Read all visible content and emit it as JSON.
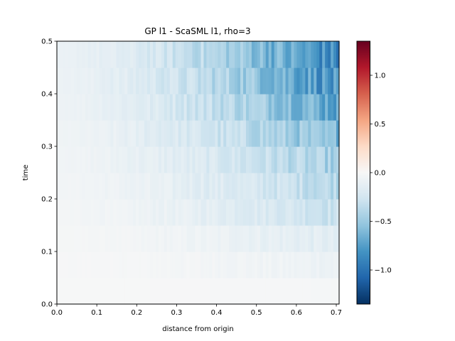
{
  "chart_data": {
    "type": "heatmap",
    "title": "GP l1 - ScaSML l1, rho=3",
    "xlabel": "distance from origin",
    "ylabel": "time",
    "xlim": [
      0,
      0.7071
    ],
    "ylim": [
      0,
      0.5
    ],
    "x_ticks": [
      "0.0",
      "0.1",
      "0.2",
      "0.3",
      "0.4",
      "0.5",
      "0.6",
      "0.7"
    ],
    "y_ticks": [
      "0.0",
      "0.1",
      "0.2",
      "0.3",
      "0.4",
      "0.5"
    ],
    "colormap": "RdBu",
    "color_range": [
      -1.35,
      1.35
    ],
    "colorbar_ticks": [
      "−1.0",
      "−0.5",
      "0.0",
      "0.5",
      "1.0"
    ],
    "grid": false,
    "time_bins": [
      0.0,
      0.05,
      0.1,
      0.15,
      0.2,
      0.25,
      0.3,
      0.35,
      0.4,
      0.45,
      0.5
    ],
    "distance_columns": 100,
    "row_profiles": [
      {
        "time": [
          0.0,
          0.05
        ],
        "start": -0.005,
        "end": -0.02,
        "noise": 0.0
      },
      {
        "time": [
          0.05,
          0.1
        ],
        "start": -0.01,
        "end": -0.08,
        "noise": 0.03
      },
      {
        "time": [
          0.1,
          0.15
        ],
        "start": -0.02,
        "end": -0.16,
        "noise": 0.05
      },
      {
        "time": [
          0.15,
          0.2
        ],
        "start": -0.03,
        "end": -0.3,
        "noise": 0.08
      },
      {
        "time": [
          0.2,
          0.25
        ],
        "start": -0.04,
        "end": -0.38,
        "noise": 0.1
      },
      {
        "time": [
          0.25,
          0.3
        ],
        "start": -0.05,
        "end": -0.48,
        "noise": 0.12
      },
      {
        "time": [
          0.3,
          0.35
        ],
        "start": -0.06,
        "end": -0.62,
        "noise": 0.15
      },
      {
        "time": [
          0.35,
          0.4
        ],
        "start": -0.07,
        "end": -0.72,
        "noise": 0.17
      },
      {
        "time": [
          0.4,
          0.45
        ],
        "start": -0.08,
        "end": -0.85,
        "noise": 0.2
      },
      {
        "time": [
          0.45,
          0.5
        ],
        "start": -0.09,
        "end": -0.9,
        "noise": 0.2
      }
    ],
    "colors": {
      "ramp": [
        "#053061",
        "#2166ac",
        "#4393c3",
        "#92c5de",
        "#d1e5f0",
        "#f7f7f7",
        "#fddbc7",
        "#f4a582",
        "#d6604d",
        "#b2182b",
        "#67001f"
      ]
    }
  }
}
